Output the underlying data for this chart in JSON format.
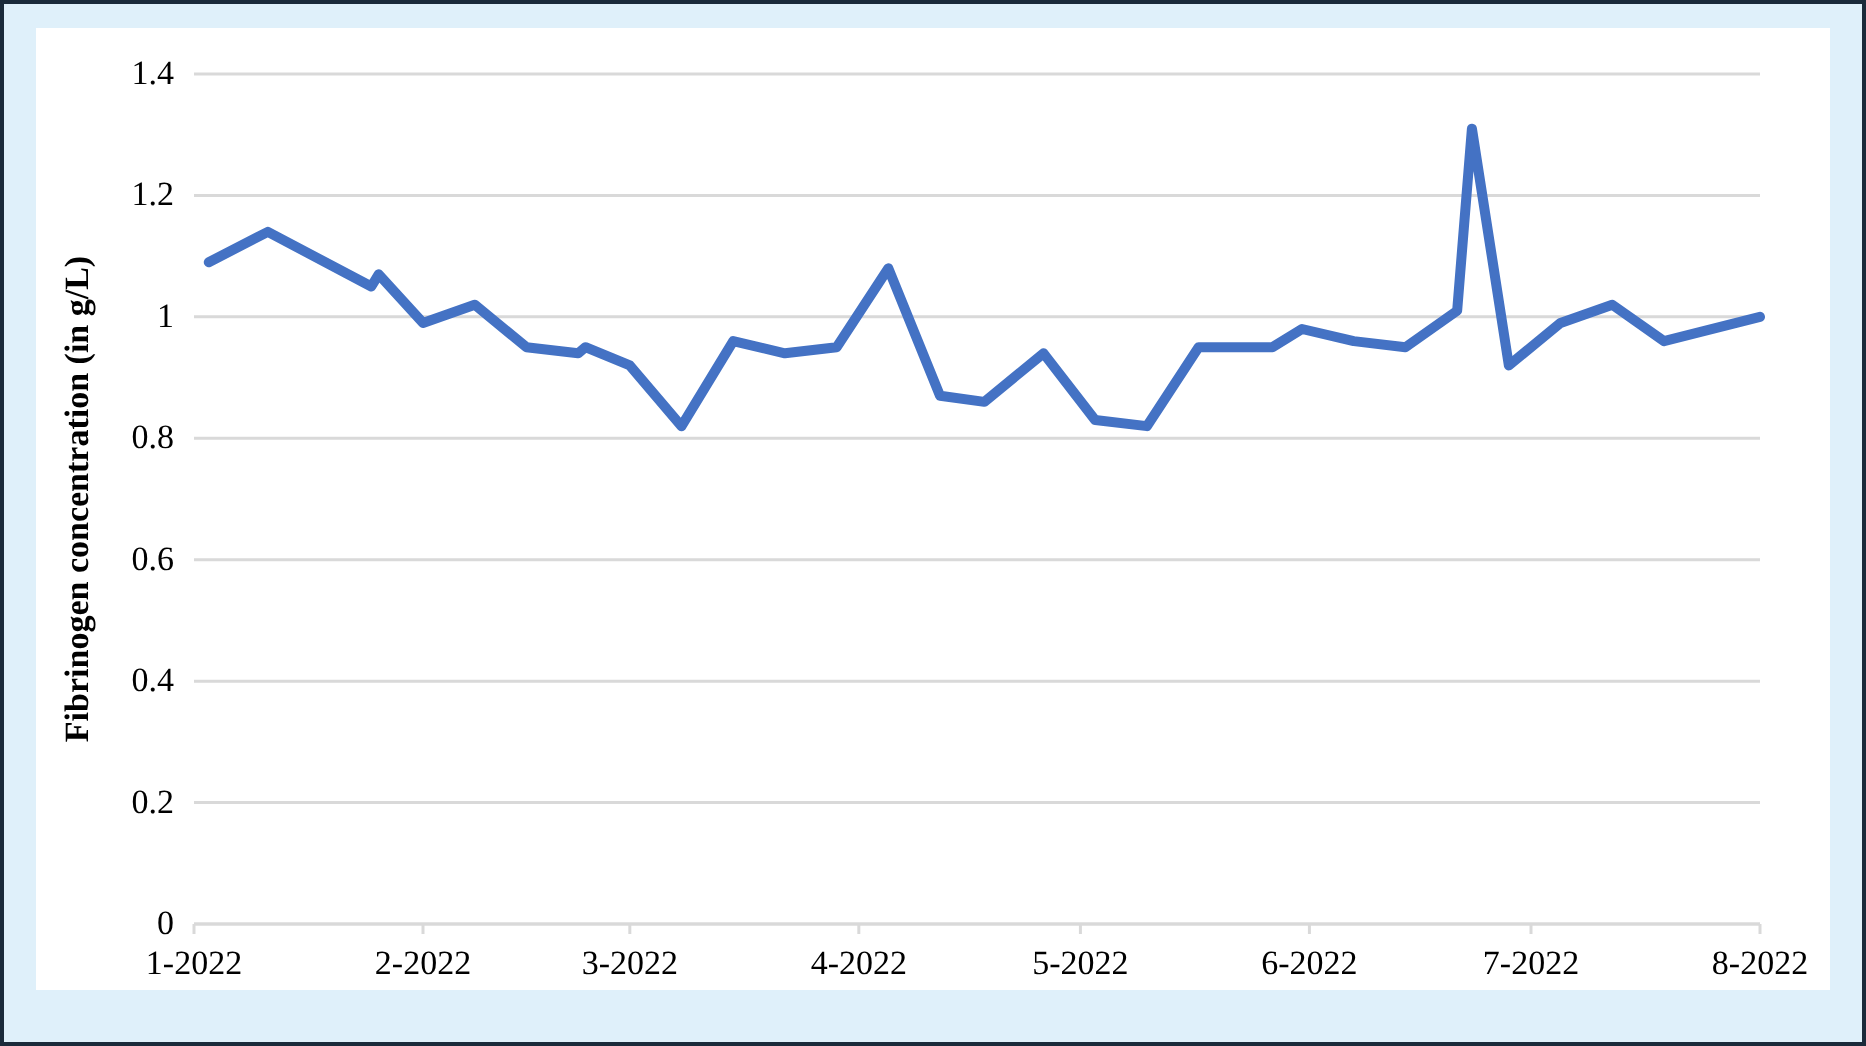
{
  "chart_data": {
    "type": "line",
    "ylabel": "Fibrinogen concentration (in g/L)",
    "x": [
      "2022-01-03",
      "2022-01-11",
      "2022-01-25",
      "2022-01-26",
      "2022-02-01",
      "2022-02-08",
      "2022-02-15",
      "2022-02-22",
      "2022-02-23",
      "2022-03-01",
      "2022-03-08",
      "2022-03-15",
      "2022-03-22",
      "2022-03-29",
      "2022-04-05",
      "2022-04-12",
      "2022-04-18",
      "2022-04-26",
      "2022-05-03",
      "2022-05-10",
      "2022-05-17",
      "2022-05-27",
      "2022-05-31",
      "2022-06-07",
      "2022-06-14",
      "2022-06-21",
      "2022-06-23",
      "2022-06-28",
      "2022-07-05",
      "2022-07-12",
      "2022-07-19",
      "2022-08-01"
    ],
    "series": [
      {
        "color": "#4472c4",
        "values": [
          1.09,
          1.14,
          1.05,
          1.07,
          0.99,
          1.02,
          0.95,
          0.94,
          0.95,
          0.92,
          0.82,
          0.96,
          0.94,
          0.95,
          1.08,
          0.87,
          0.86,
          0.94,
          0.83,
          0.82,
          0.95,
          0.95,
          0.98,
          0.96,
          0.95,
          1.01,
          1.31,
          0.92,
          0.99,
          1.02,
          0.96,
          1.0
        ]
      }
    ],
    "xlim": [
      "2022-01-01",
      "2022-08-01"
    ],
    "xticks": [
      {
        "value": "2022-01-01",
        "label": "1-2022"
      },
      {
        "value": "2022-02-01",
        "label": "2-2022"
      },
      {
        "value": "2022-03-01",
        "label": "3-2022"
      },
      {
        "value": "2022-04-01",
        "label": "4-2022"
      },
      {
        "value": "2022-05-01",
        "label": "5-2022"
      },
      {
        "value": "2022-06-01",
        "label": "6-2022"
      },
      {
        "value": "2022-07-01",
        "label": "7-2022"
      },
      {
        "value": "2022-08-01",
        "label": "8-2022"
      }
    ],
    "ylim": [
      0,
      1.4
    ],
    "yticks": [
      0,
      0.2,
      0.4,
      0.6,
      0.8,
      1,
      1.2,
      1.4
    ],
    "grid": "y",
    "marker": "none",
    "line_style": "solid"
  }
}
